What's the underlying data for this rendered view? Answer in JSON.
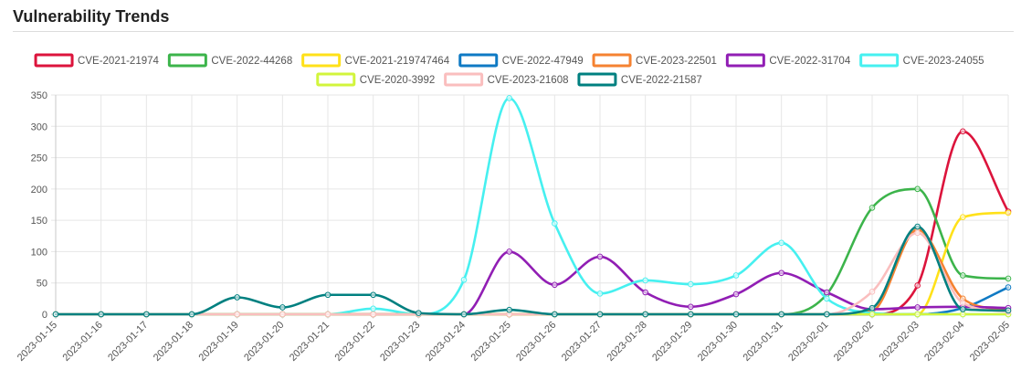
{
  "page": {
    "title": "Vulnerability Trends"
  },
  "chart_data": {
    "type": "line",
    "title": "",
    "xlabel": "",
    "ylabel": "",
    "ylim": [
      0,
      350
    ],
    "yticks": [
      0,
      50,
      100,
      150,
      200,
      250,
      300,
      350
    ],
    "grid": true,
    "legend": "top",
    "categories": [
      "2023-01-15",
      "2023-01-16",
      "2023-01-17",
      "2023-01-18",
      "2023-01-19",
      "2023-01-20",
      "2023-01-21",
      "2023-01-22",
      "2023-01-23",
      "2023-01-24",
      "2023-01-25",
      "2023-01-26",
      "2023-01-27",
      "2023-01-28",
      "2023-01-29",
      "2023-01-30",
      "2023-01-31",
      "2023-02-01",
      "2023-02-02",
      "2023-02-03",
      "2023-02-04",
      "2023-02-05"
    ],
    "series": [
      {
        "name": "CVE-2021-21974",
        "color": "#dc143c",
        "values": [
          0,
          0,
          0,
          0,
          0,
          0,
          0,
          0,
          0,
          0,
          0,
          0,
          0,
          0,
          0,
          0,
          0,
          0,
          0,
          46,
          292,
          164
        ]
      },
      {
        "name": "CVE-2022-44268",
        "color": "#3cb44b",
        "values": [
          0,
          0,
          0,
          0,
          0,
          0,
          0,
          0,
          0,
          0,
          0,
          0,
          0,
          0,
          0,
          0,
          0,
          32,
          170,
          200,
          62,
          57
        ]
      },
      {
        "name": "CVE-2021-219747464",
        "color": "#ffe119",
        "values": [
          0,
          0,
          0,
          0,
          0,
          0,
          0,
          0,
          0,
          0,
          0,
          0,
          0,
          0,
          0,
          0,
          0,
          0,
          0,
          0,
          155,
          162
        ]
      },
      {
        "name": "CVE-2022-47949",
        "color": "#0f7ac4",
        "values": [
          0,
          0,
          0,
          0,
          0,
          0,
          0,
          0,
          0,
          0,
          0,
          0,
          0,
          0,
          0,
          0,
          0,
          0,
          0,
          0,
          10,
          43
        ]
      },
      {
        "name": "CVE-2023-22501",
        "color": "#f58231",
        "values": [
          0,
          0,
          0,
          0,
          0,
          0,
          0,
          0,
          0,
          0,
          0,
          0,
          0,
          0,
          0,
          0,
          0,
          0,
          5,
          135,
          25,
          6
        ]
      },
      {
        "name": "CVE-2022-31704",
        "color": "#911eb4",
        "values": [
          0,
          0,
          0,
          0,
          0,
          0,
          0,
          0,
          0,
          0,
          100,
          47,
          92,
          35,
          12,
          32,
          66,
          35,
          8,
          11,
          12,
          10
        ]
      },
      {
        "name": "CVE-2023-24055",
        "color": "#46f0f0",
        "values": [
          0,
          0,
          0,
          0,
          0,
          0,
          0,
          9,
          0,
          55,
          345,
          145,
          33,
          54,
          48,
          62,
          114,
          25,
          2,
          0,
          0,
          0
        ]
      },
      {
        "name": "CVE-2020-3992",
        "color": "#d2f53c",
        "values": [
          0,
          0,
          0,
          0,
          0,
          0,
          0,
          0,
          0,
          0,
          0,
          0,
          0,
          0,
          0,
          0,
          0,
          0,
          0,
          0,
          0,
          0
        ]
      },
      {
        "name": "CVE-2023-21608",
        "color": "#fabebe",
        "values": [
          0,
          0,
          0,
          0,
          0,
          0,
          0,
          0,
          0,
          0,
          0,
          0,
          0,
          0,
          0,
          0,
          0,
          0,
          36,
          130,
          18,
          4
        ]
      },
      {
        "name": "CVE-2022-21587",
        "color": "#008080",
        "values": [
          0,
          0,
          0,
          0,
          27,
          11,
          31,
          31,
          2,
          0,
          7,
          0,
          0,
          0,
          0,
          0,
          0,
          0,
          10,
          140,
          8,
          6
        ]
      }
    ]
  }
}
